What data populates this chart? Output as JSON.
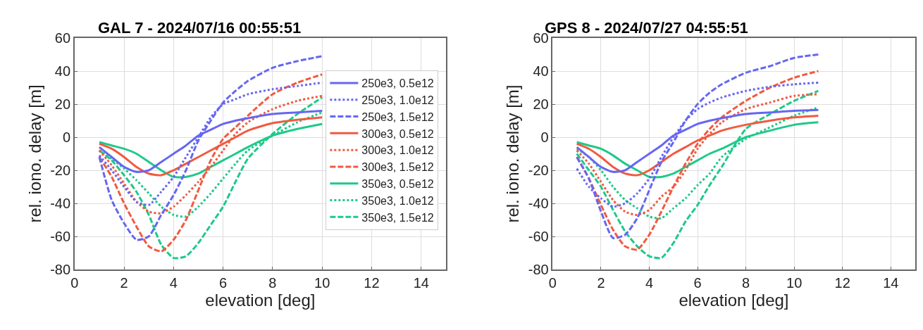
{
  "chart_data": [
    {
      "type": "line",
      "title": "GAL 7 - 2024/07/16 00:55:51",
      "xlabel": "elevation [deg]",
      "ylabel": "rel. iono. delay [m]",
      "x": [
        1,
        1.5,
        2,
        2.5,
        3,
        3.5,
        4,
        4.5,
        5,
        5.5,
        6,
        6.5,
        7,
        8,
        9,
        10
      ],
      "xlim": [
        0,
        15
      ],
      "xticks": [
        0,
        2,
        4,
        6,
        8,
        10,
        12,
        14
      ],
      "ylim": [
        -80,
        60
      ],
      "yticks": [
        -80,
        -60,
        -40,
        -20,
        0,
        20,
        40,
        60
      ],
      "grid": true,
      "legend": "right",
      "marker": "none",
      "series": [
        {
          "name": "250e3, 0.5e12",
          "color": "#6666f2",
          "line_style": "solid",
          "values": [
            -6,
            -12,
            -18,
            -21,
            -20,
            -15,
            -10,
            -5,
            1,
            4.5,
            8,
            10,
            11.5,
            14,
            15,
            16
          ]
        },
        {
          "name": "250e3, 1.0e12",
          "color": "#6666f2",
          "line_style": "dotted",
          "values": [
            -11,
            -20,
            -30,
            -39,
            -41,
            -33,
            -24,
            -12,
            0,
            12,
            20,
            23,
            26,
            29,
            31,
            33
          ]
        },
        {
          "name": "250e3, 1.5e12",
          "color": "#6666f2",
          "line_style": "dashed",
          "values": [
            -12,
            -38,
            -52,
            -62,
            -60,
            -47,
            -35,
            -20,
            -2,
            10,
            21,
            28,
            34,
            42,
            46,
            49
          ]
        },
        {
          "name": "300e3, 0.5e12",
          "color": "#f05a40",
          "line_style": "solid",
          "values": [
            -4,
            -7,
            -12,
            -18,
            -22,
            -23,
            -20,
            -16,
            -12,
            -8,
            -4,
            0,
            4,
            8.5,
            10.5,
            12
          ]
        },
        {
          "name": "300e3, 1.0e12",
          "color": "#f05a40",
          "line_style": "dotted",
          "values": [
            -8,
            -17,
            -28,
            -39,
            -45,
            -46,
            -42,
            -35,
            -27,
            -18,
            -8,
            2,
            9,
            17,
            22,
            25
          ]
        },
        {
          "name": "300e3, 1.5e12",
          "color": "#f05a40",
          "line_style": "dashed",
          "values": [
            -12,
            -24,
            -40,
            -54,
            -66,
            -69,
            -62,
            -50,
            -32,
            -14,
            -1,
            6,
            13,
            26,
            33,
            38
          ]
        },
        {
          "name": "350e3, 0.5e12",
          "color": "#1ec98a",
          "line_style": "solid",
          "values": [
            -3,
            -5,
            -7,
            -10,
            -15,
            -20,
            -24,
            -24,
            -22,
            -18,
            -14,
            -10,
            -6,
            1,
            5,
            8
          ]
        },
        {
          "name": "350e3, 1.0e12",
          "color": "#1ec98a",
          "line_style": "dotted",
          "values": [
            -8,
            -13,
            -19,
            -26,
            -34,
            -42,
            -47,
            -48,
            -42,
            -34,
            -25,
            -16,
            -8,
            1,
            9,
            15
          ]
        },
        {
          "name": "350e3, 1.5e12",
          "color": "#1ec98a",
          "line_style": "dashed",
          "values": [
            -8,
            -14,
            -23,
            -33,
            -47,
            -65,
            -73,
            -72,
            -64,
            -53,
            -42,
            -27,
            -13,
            2,
            14,
            24
          ]
        }
      ]
    },
    {
      "type": "line",
      "title": "GPS 8 - 2024/07/27 04:55:51",
      "xlabel": "elevation [deg]",
      "ylabel": "rel. iono. delay [m]",
      "x": [
        1,
        1.5,
        2,
        2.5,
        3,
        3.5,
        4,
        4.5,
        5,
        5.5,
        6,
        6.5,
        7,
        8,
        9,
        10,
        11
      ],
      "xlim": [
        0,
        15
      ],
      "xticks": [
        0,
        2,
        4,
        6,
        8,
        10,
        12,
        14
      ],
      "ylim": [
        -80,
        60
      ],
      "yticks": [
        -80,
        -60,
        -40,
        -20,
        0,
        20,
        40,
        60
      ],
      "grid": true,
      "marker": "none",
      "series": [
        {
          "color": "#6666f2",
          "line_style": "solid",
          "values": [
            -6,
            -12,
            -18,
            -21,
            -20,
            -15,
            -10,
            -5,
            1,
            4.5,
            8,
            10,
            11.5,
            14,
            15,
            16,
            16.5
          ]
        },
        {
          "color": "#6666f2",
          "line_style": "dotted",
          "values": [
            -19,
            -30,
            -37,
            -42,
            -40,
            -34,
            -25,
            -12,
            0,
            10,
            17,
            21,
            24,
            28,
            30.5,
            32,
            33
          ]
        },
        {
          "color": "#6666f2",
          "line_style": "dashed",
          "values": [
            -12,
            -25,
            -45,
            -61,
            -59,
            -49,
            -32,
            -15,
            -3,
            10,
            20,
            27,
            32,
            39,
            43,
            48,
            50
          ]
        },
        {
          "color": "#f05a40",
          "line_style": "solid",
          "values": [
            -4,
            -7,
            -12,
            -18,
            -22,
            -23,
            -20,
            -15,
            -10,
            -6,
            -2,
            1,
            4,
            7.5,
            10,
            12,
            13
          ]
        },
        {
          "color": "#f05a40",
          "line_style": "dotted",
          "values": [
            -8,
            -16,
            -27,
            -38,
            -45,
            -47,
            -44,
            -36,
            -30,
            -20,
            -7,
            2,
            9,
            17,
            21,
            25,
            26
          ]
        },
        {
          "color": "#f05a40",
          "line_style": "dashed",
          "values": [
            -12,
            -25,
            -41,
            -56,
            -66,
            -68,
            -59,
            -45,
            -30,
            -16,
            -4,
            5,
            12,
            22,
            30,
            36,
            40
          ]
        },
        {
          "color": "#1ec98a",
          "line_style": "solid",
          "values": [
            -3,
            -5,
            -7,
            -11,
            -16,
            -20,
            -24,
            -24,
            -22,
            -18,
            -14,
            -10,
            -7,
            0,
            4,
            7.5,
            9
          ]
        },
        {
          "color": "#1ec98a",
          "line_style": "dotted",
          "values": [
            -7,
            -12,
            -20,
            -30,
            -38,
            -43,
            -48,
            -49,
            -43,
            -37,
            -29,
            -22,
            -12,
            -1,
            6,
            13,
            18
          ]
        },
        {
          "color": "#1ec98a",
          "line_style": "dashed",
          "values": [
            -10,
            -20,
            -30,
            -44,
            -57,
            -66,
            -72,
            -73,
            -64,
            -51,
            -41,
            -29,
            -18,
            5,
            14,
            22,
            28
          ]
        }
      ]
    }
  ]
}
